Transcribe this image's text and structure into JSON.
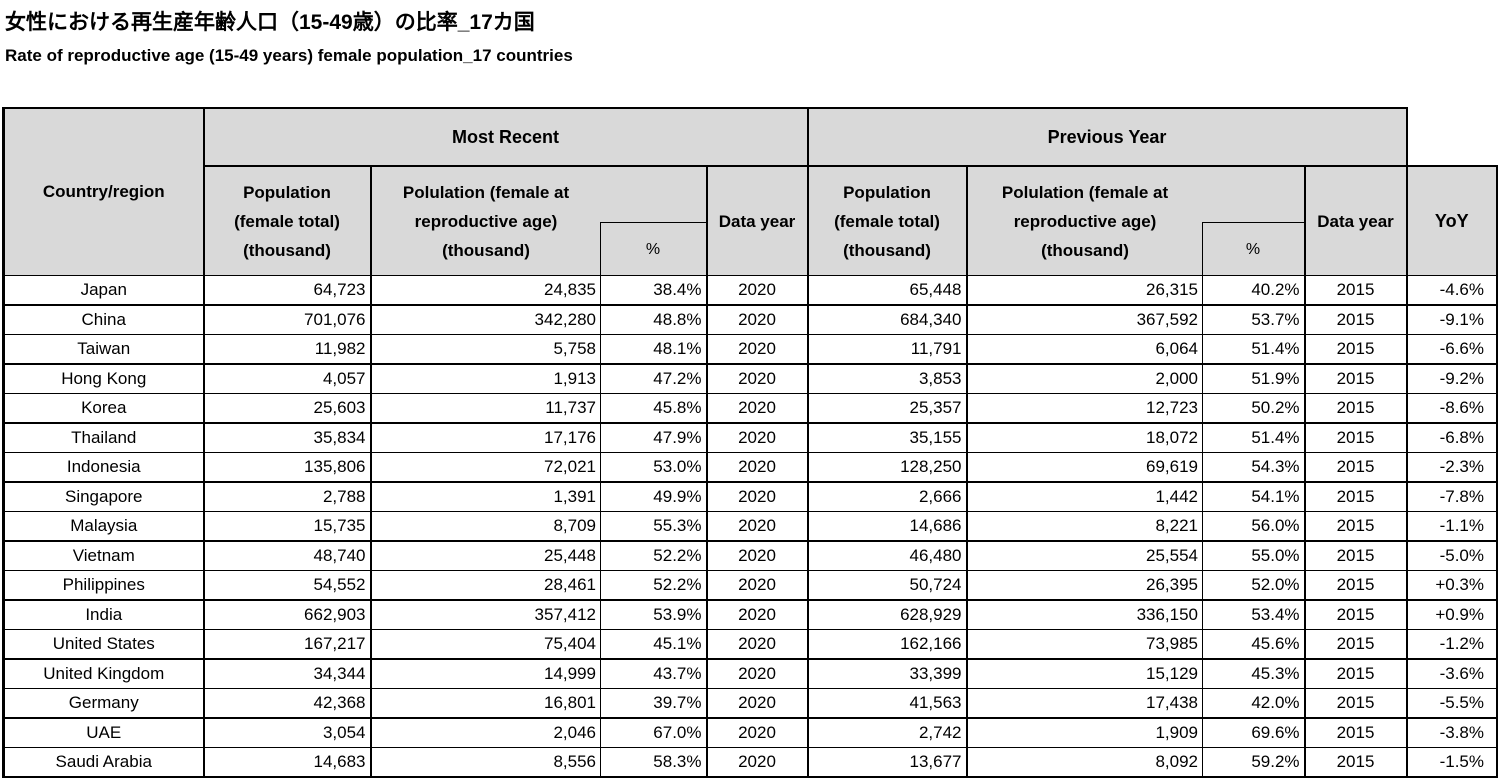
{
  "page": {
    "title_ja": "女性における再生産年齢人口（15-49歳）の比率_17カ国",
    "title_en": "Rate of reproductive age (15-49 years) female population_17 countries"
  },
  "header": {
    "country": "Country/region",
    "most_recent": "Most Recent",
    "previous_year": "Previous Year",
    "pop_total_lines": [
      "Population",
      "(female total)",
      "(thousand)"
    ],
    "pop_repro_lines": [
      "Polulation (female at",
      "reproductive age)",
      "(thousand)"
    ],
    "percent": "%",
    "data_year": "Data year",
    "yoy": "YoY"
  },
  "colors": {
    "header_bg": "#d9d9d9",
    "border": "#000000",
    "text": "#000000"
  },
  "chart_data": {
    "type": "table",
    "title": "女性における再生産年齢人口（15-49歳）の比率_17カ国",
    "subtitle": "Rate of reproductive age (15-49 years) female population_17 countries",
    "column_groups": [
      {
        "label": "Most Recent",
        "span": 4
      },
      {
        "label": "Previous Year",
        "span": 4
      }
    ],
    "columns": [
      "Country/region",
      "Most Recent: Population (female total) (thousand)",
      "Most Recent: Polulation (female at reproductive age) (thousand)",
      "Most Recent: %",
      "Most Recent: Data year",
      "Previous Year: Population (female total) (thousand)",
      "Previous Year: Polulation (female at reproductive age) (thousand)",
      "Previous Year: %",
      "Previous Year: Data year",
      "YoY"
    ],
    "rows": [
      {
        "country": "Japan",
        "mr_pop": "64,723",
        "mr_repro": "24,835",
        "mr_pct": "38.4%",
        "mr_year": "2020",
        "py_pop": "65,448",
        "py_repro": "26,315",
        "py_pct": "40.2%",
        "py_year": "2015",
        "yoy": "-4.6%"
      },
      {
        "country": "China",
        "mr_pop": "701,076",
        "mr_repro": "342,280",
        "mr_pct": "48.8%",
        "mr_year": "2020",
        "py_pop": "684,340",
        "py_repro": "367,592",
        "py_pct": "53.7%",
        "py_year": "2015",
        "yoy": "-9.1%"
      },
      {
        "country": "Taiwan",
        "mr_pop": "11,982",
        "mr_repro": "5,758",
        "mr_pct": "48.1%",
        "mr_year": "2020",
        "py_pop": "11,791",
        "py_repro": "6,064",
        "py_pct": "51.4%",
        "py_year": "2015",
        "yoy": "-6.6%"
      },
      {
        "country": "Hong Kong",
        "mr_pop": "4,057",
        "mr_repro": "1,913",
        "mr_pct": "47.2%",
        "mr_year": "2020",
        "py_pop": "3,853",
        "py_repro": "2,000",
        "py_pct": "51.9%",
        "py_year": "2015",
        "yoy": "-9.2%"
      },
      {
        "country": "Korea",
        "mr_pop": "25,603",
        "mr_repro": "11,737",
        "mr_pct": "45.8%",
        "mr_year": "2020",
        "py_pop": "25,357",
        "py_repro": "12,723",
        "py_pct": "50.2%",
        "py_year": "2015",
        "yoy": "-8.6%"
      },
      {
        "country": "Thailand",
        "mr_pop": "35,834",
        "mr_repro": "17,176",
        "mr_pct": "47.9%",
        "mr_year": "2020",
        "py_pop": "35,155",
        "py_repro": "18,072",
        "py_pct": "51.4%",
        "py_year": "2015",
        "yoy": "-6.8%"
      },
      {
        "country": "Indonesia",
        "mr_pop": "135,806",
        "mr_repro": "72,021",
        "mr_pct": "53.0%",
        "mr_year": "2020",
        "py_pop": "128,250",
        "py_repro": "69,619",
        "py_pct": "54.3%",
        "py_year": "2015",
        "yoy": "-2.3%"
      },
      {
        "country": "Singapore",
        "mr_pop": "2,788",
        "mr_repro": "1,391",
        "mr_pct": "49.9%",
        "mr_year": "2020",
        "py_pop": "2,666",
        "py_repro": "1,442",
        "py_pct": "54.1%",
        "py_year": "2015",
        "yoy": "-7.8%"
      },
      {
        "country": "Malaysia",
        "mr_pop": "15,735",
        "mr_repro": "8,709",
        "mr_pct": "55.3%",
        "mr_year": "2020",
        "py_pop": "14,686",
        "py_repro": "8,221",
        "py_pct": "56.0%",
        "py_year": "2015",
        "yoy": "-1.1%"
      },
      {
        "country": "Vietnam",
        "mr_pop": "48,740",
        "mr_repro": "25,448",
        "mr_pct": "52.2%",
        "mr_year": "2020",
        "py_pop": "46,480",
        "py_repro": "25,554",
        "py_pct": "55.0%",
        "py_year": "2015",
        "yoy": "-5.0%"
      },
      {
        "country": "Philippines",
        "mr_pop": "54,552",
        "mr_repro": "28,461",
        "mr_pct": "52.2%",
        "mr_year": "2020",
        "py_pop": "50,724",
        "py_repro": "26,395",
        "py_pct": "52.0%",
        "py_year": "2015",
        "yoy": "+0.3%"
      },
      {
        "country": "India",
        "mr_pop": "662,903",
        "mr_repro": "357,412",
        "mr_pct": "53.9%",
        "mr_year": "2020",
        "py_pop": "628,929",
        "py_repro": "336,150",
        "py_pct": "53.4%",
        "py_year": "2015",
        "yoy": "+0.9%"
      },
      {
        "country": "United States",
        "mr_pop": "167,217",
        "mr_repro": "75,404",
        "mr_pct": "45.1%",
        "mr_year": "2020",
        "py_pop": "162,166",
        "py_repro": "73,985",
        "py_pct": "45.6%",
        "py_year": "2015",
        "yoy": "-1.2%"
      },
      {
        "country": "United Kingdom",
        "mr_pop": "34,344",
        "mr_repro": "14,999",
        "mr_pct": "43.7%",
        "mr_year": "2020",
        "py_pop": "33,399",
        "py_repro": "15,129",
        "py_pct": "45.3%",
        "py_year": "2015",
        "yoy": "-3.6%"
      },
      {
        "country": "Germany",
        "mr_pop": "42,368",
        "mr_repro": "16,801",
        "mr_pct": "39.7%",
        "mr_year": "2020",
        "py_pop": "41,563",
        "py_repro": "17,438",
        "py_pct": "42.0%",
        "py_year": "2015",
        "yoy": "-5.5%"
      },
      {
        "country": "UAE",
        "mr_pop": "3,054",
        "mr_repro": "2,046",
        "mr_pct": "67.0%",
        "mr_year": "2020",
        "py_pop": "2,742",
        "py_repro": "1,909",
        "py_pct": "69.6%",
        "py_year": "2015",
        "yoy": "-3.8%"
      },
      {
        "country": "Saudi Arabia",
        "mr_pop": "14,683",
        "mr_repro": "8,556",
        "mr_pct": "58.3%",
        "mr_year": "2020",
        "py_pop": "13,677",
        "py_repro": "8,092",
        "py_pct": "59.2%",
        "py_year": "2015",
        "yoy": "-1.5%"
      }
    ]
  }
}
